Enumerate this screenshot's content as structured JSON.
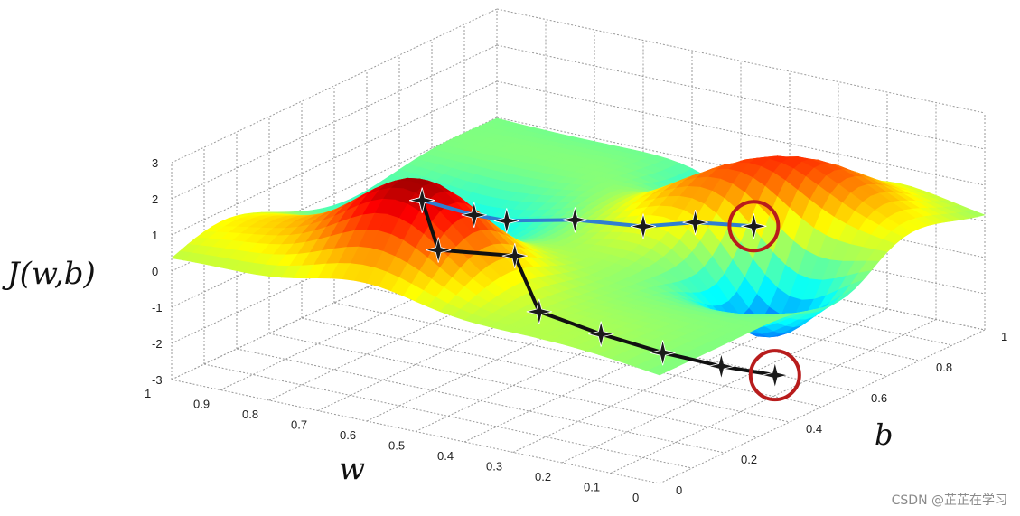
{
  "chart_data": {
    "type": "surface",
    "zlabel": "J(w,b)",
    "xlabel": "w",
    "ylabel": "b",
    "z_ticks": [
      "3",
      "2",
      "1",
      "0",
      "-1",
      "-2",
      "-3"
    ],
    "w_ticks": [
      "1",
      "0.9",
      "0.8",
      "0.7",
      "0.6",
      "0.5",
      "0.4",
      "0.3",
      "0.2",
      "0.1",
      "0"
    ],
    "b_ticks": [
      "0",
      "0.2",
      "0.4",
      "0.6",
      "0.8",
      "1"
    ],
    "w_range": [
      0,
      1
    ],
    "b_range": [
      0,
      1
    ],
    "z_range": [
      -3,
      3
    ],
    "grid": true,
    "colormap": "jet",
    "paths": [
      {
        "color": "#111111",
        "points": [
          [
            0.62,
            0.2,
            2.2
          ],
          [
            0.6,
            0.22,
            0.8
          ],
          [
            0.55,
            0.38,
            0.1
          ],
          [
            0.5,
            0.38,
            -1.3
          ],
          [
            0.4,
            0.42,
            -1.8
          ],
          [
            0.3,
            0.46,
            -2.2
          ],
          [
            0.22,
            0.52,
            -2.6
          ],
          [
            0.15,
            0.58,
            -2.9
          ]
        ]
      },
      {
        "color": "#2f7fd0",
        "points": [
          [
            0.62,
            0.2,
            2.2
          ],
          [
            0.6,
            0.33,
            1.3
          ],
          [
            0.58,
            0.4,
            0.9
          ],
          [
            0.54,
            0.55,
            0.4
          ],
          [
            0.5,
            0.7,
            -0.3
          ],
          [
            0.46,
            0.8,
            -0.5
          ],
          [
            0.42,
            0.92,
            -1.0
          ]
        ]
      }
    ],
    "minima_circles": [
      [
        0.15,
        0.58,
        -2.9
      ],
      [
        0.42,
        0.92,
        -1.0
      ]
    ],
    "circle_color": "#b81c1c"
  },
  "watermark": "CSDN @芷芷在学习"
}
